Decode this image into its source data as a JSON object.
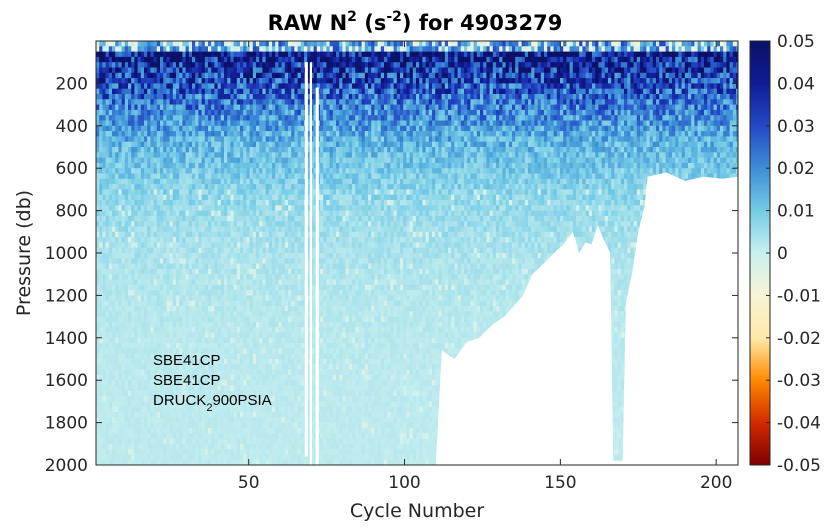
{
  "chart_data": {
    "type": "heatmap",
    "title": {
      "prefix": "RAW N",
      "prefix_sup": "2",
      "unit_open": " (s",
      "unit_sup": "-2",
      "unit_close": ")",
      "suffix": " for 4903279"
    },
    "xlabel": "Cycle Number",
    "ylabel": "Pressure (db)",
    "xlim": [
      1,
      207
    ],
    "ylim": [
      0,
      2000
    ],
    "y_reversed": true,
    "xticks": [
      50,
      100,
      150,
      200
    ],
    "yticks": [
      200,
      400,
      600,
      800,
      1000,
      1200,
      1400,
      1600,
      1800,
      2000
    ],
    "colorbar": {
      "range": [
        -0.05,
        0.05
      ],
      "ticks": [
        "0.05",
        "0.04",
        "0.03",
        "0.02",
        "0.01",
        "0",
        "-0.01",
        "-0.02",
        "-0.03",
        "-0.04",
        "-0.05"
      ],
      "colormap": [
        "#7f0000",
        "#d22a00",
        "#ff8a00",
        "#ffe9a8",
        "#f8f3d5",
        "#c9f0ef",
        "#74cbe6",
        "#3c8fd6",
        "#2448c6",
        "#101c96",
        "#0a1166"
      ]
    },
    "max_depth_profile": [
      {
        "cycle": 1,
        "depth": 2000
      },
      {
        "cycle": 67,
        "depth": 2000
      },
      {
        "cycle": 110,
        "depth": 2000
      },
      {
        "cycle": 112,
        "depth": 1460
      },
      {
        "cycle": 116,
        "depth": 1500
      },
      {
        "cycle": 120,
        "depth": 1420
      },
      {
        "cycle": 124,
        "depth": 1400
      },
      {
        "cycle": 128,
        "depth": 1340
      },
      {
        "cycle": 132,
        "depth": 1300
      },
      {
        "cycle": 135,
        "depth": 1250
      },
      {
        "cycle": 138,
        "depth": 1200
      },
      {
        "cycle": 141,
        "depth": 1100
      },
      {
        "cycle": 144,
        "depth": 1060
      },
      {
        "cycle": 148,
        "depth": 1000
      },
      {
        "cycle": 151,
        "depth": 960
      },
      {
        "cycle": 154,
        "depth": 900
      },
      {
        "cycle": 156,
        "depth": 1000
      },
      {
        "cycle": 158,
        "depth": 950
      },
      {
        "cycle": 160,
        "depth": 960
      },
      {
        "cycle": 162,
        "depth": 870
      },
      {
        "cycle": 164,
        "depth": 940
      },
      {
        "cycle": 166,
        "depth": 1000
      },
      {
        "cycle": 167,
        "depth": 1980
      },
      {
        "cycle": 170,
        "depth": 1980
      },
      {
        "cycle": 171,
        "depth": 1240
      },
      {
        "cycle": 173,
        "depth": 1100
      },
      {
        "cycle": 175,
        "depth": 900
      },
      {
        "cycle": 177,
        "depth": 780
      },
      {
        "cycle": 178,
        "depth": 640
      },
      {
        "cycle": 184,
        "depth": 620
      },
      {
        "cycle": 190,
        "depth": 660
      },
      {
        "cycle": 196,
        "depth": 640
      },
      {
        "cycle": 202,
        "depth": 650
      },
      {
        "cycle": 207,
        "depth": 640
      }
    ],
    "data_gaps": [
      {
        "from_cycle": 68,
        "to_cycle": 69,
        "from_depth": 100,
        "to_depth": 1960
      },
      {
        "from_cycle": 69.6,
        "to_cycle": 70.3,
        "from_depth": 100,
        "to_depth": 2000
      },
      {
        "from_cycle": 71.5,
        "to_cycle": 72.5,
        "from_depth": 220,
        "to_depth": 2000
      }
    ],
    "annotations": [
      "SBE41CP",
      "SBE41CP",
      "DRUCK"
    ],
    "annotation_sub": "2",
    "annotation_tail": "900PSIA",
    "grid": false
  }
}
